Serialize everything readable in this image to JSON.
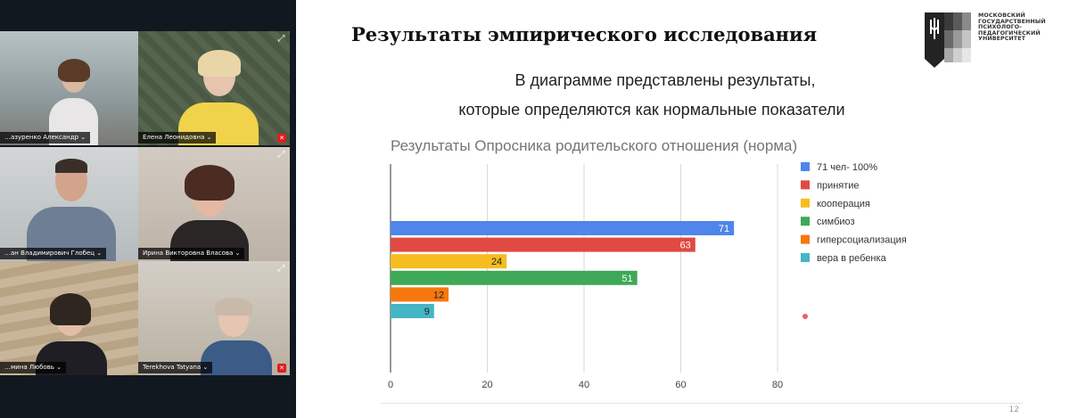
{
  "participants": [
    {
      "name": "…азуренко Александр ⌄",
      "muted": true,
      "bg": "#9aa8ad"
    },
    {
      "name": "Елена Леонидовна ⌄",
      "muted": true,
      "bg": "#5a6a55"
    },
    {
      "name": "…ан Владимирович Глобец ⌄",
      "muted": true,
      "bg": "#bfc3c3"
    },
    {
      "name": "Ирина Викторовна Власова ⌄",
      "muted": false,
      "bg": "#c9c0b6",
      "active": true
    },
    {
      "name": "…мина Любовь ⌄",
      "muted": true,
      "bg": "#b8a48a"
    },
    {
      "name": "Terekhova Tatyana ⌄",
      "muted": true,
      "bg": "#c7c1b5"
    }
  ],
  "slide": {
    "title": "Результаты эмпирического исследования",
    "intro_line1": "В диаграмме представлены результаты,",
    "intro_line2": "которые определяются как нормальные показатели",
    "logo_text": "МОСКОВСКИЙ ГОСУДАРСТВЕННЫЙ ПСИХОЛОГО-ПЕДАГОГИЧЕСКИЙ УНИВЕРСИТЕТ",
    "page_number": "12"
  },
  "chart_data": {
    "type": "bar",
    "orientation": "horizontal",
    "title": "Результаты Опросника родительского отношения (норма)",
    "categories": [
      "71 чел- 100%",
      "принятие",
      "кооперация",
      "симбиоз",
      "гиперсоциализация",
      "вера в ребенка"
    ],
    "values": [
      71,
      63,
      24,
      51,
      12,
      9
    ],
    "colors": [
      "#4f86ec",
      "#e04a42",
      "#f5bd1f",
      "#3ea957",
      "#f6780d",
      "#45b6c6"
    ],
    "xlim": [
      0,
      80
    ],
    "xticks": [
      0,
      20,
      40,
      60,
      80
    ],
    "grid": true,
    "legend": "right"
  }
}
